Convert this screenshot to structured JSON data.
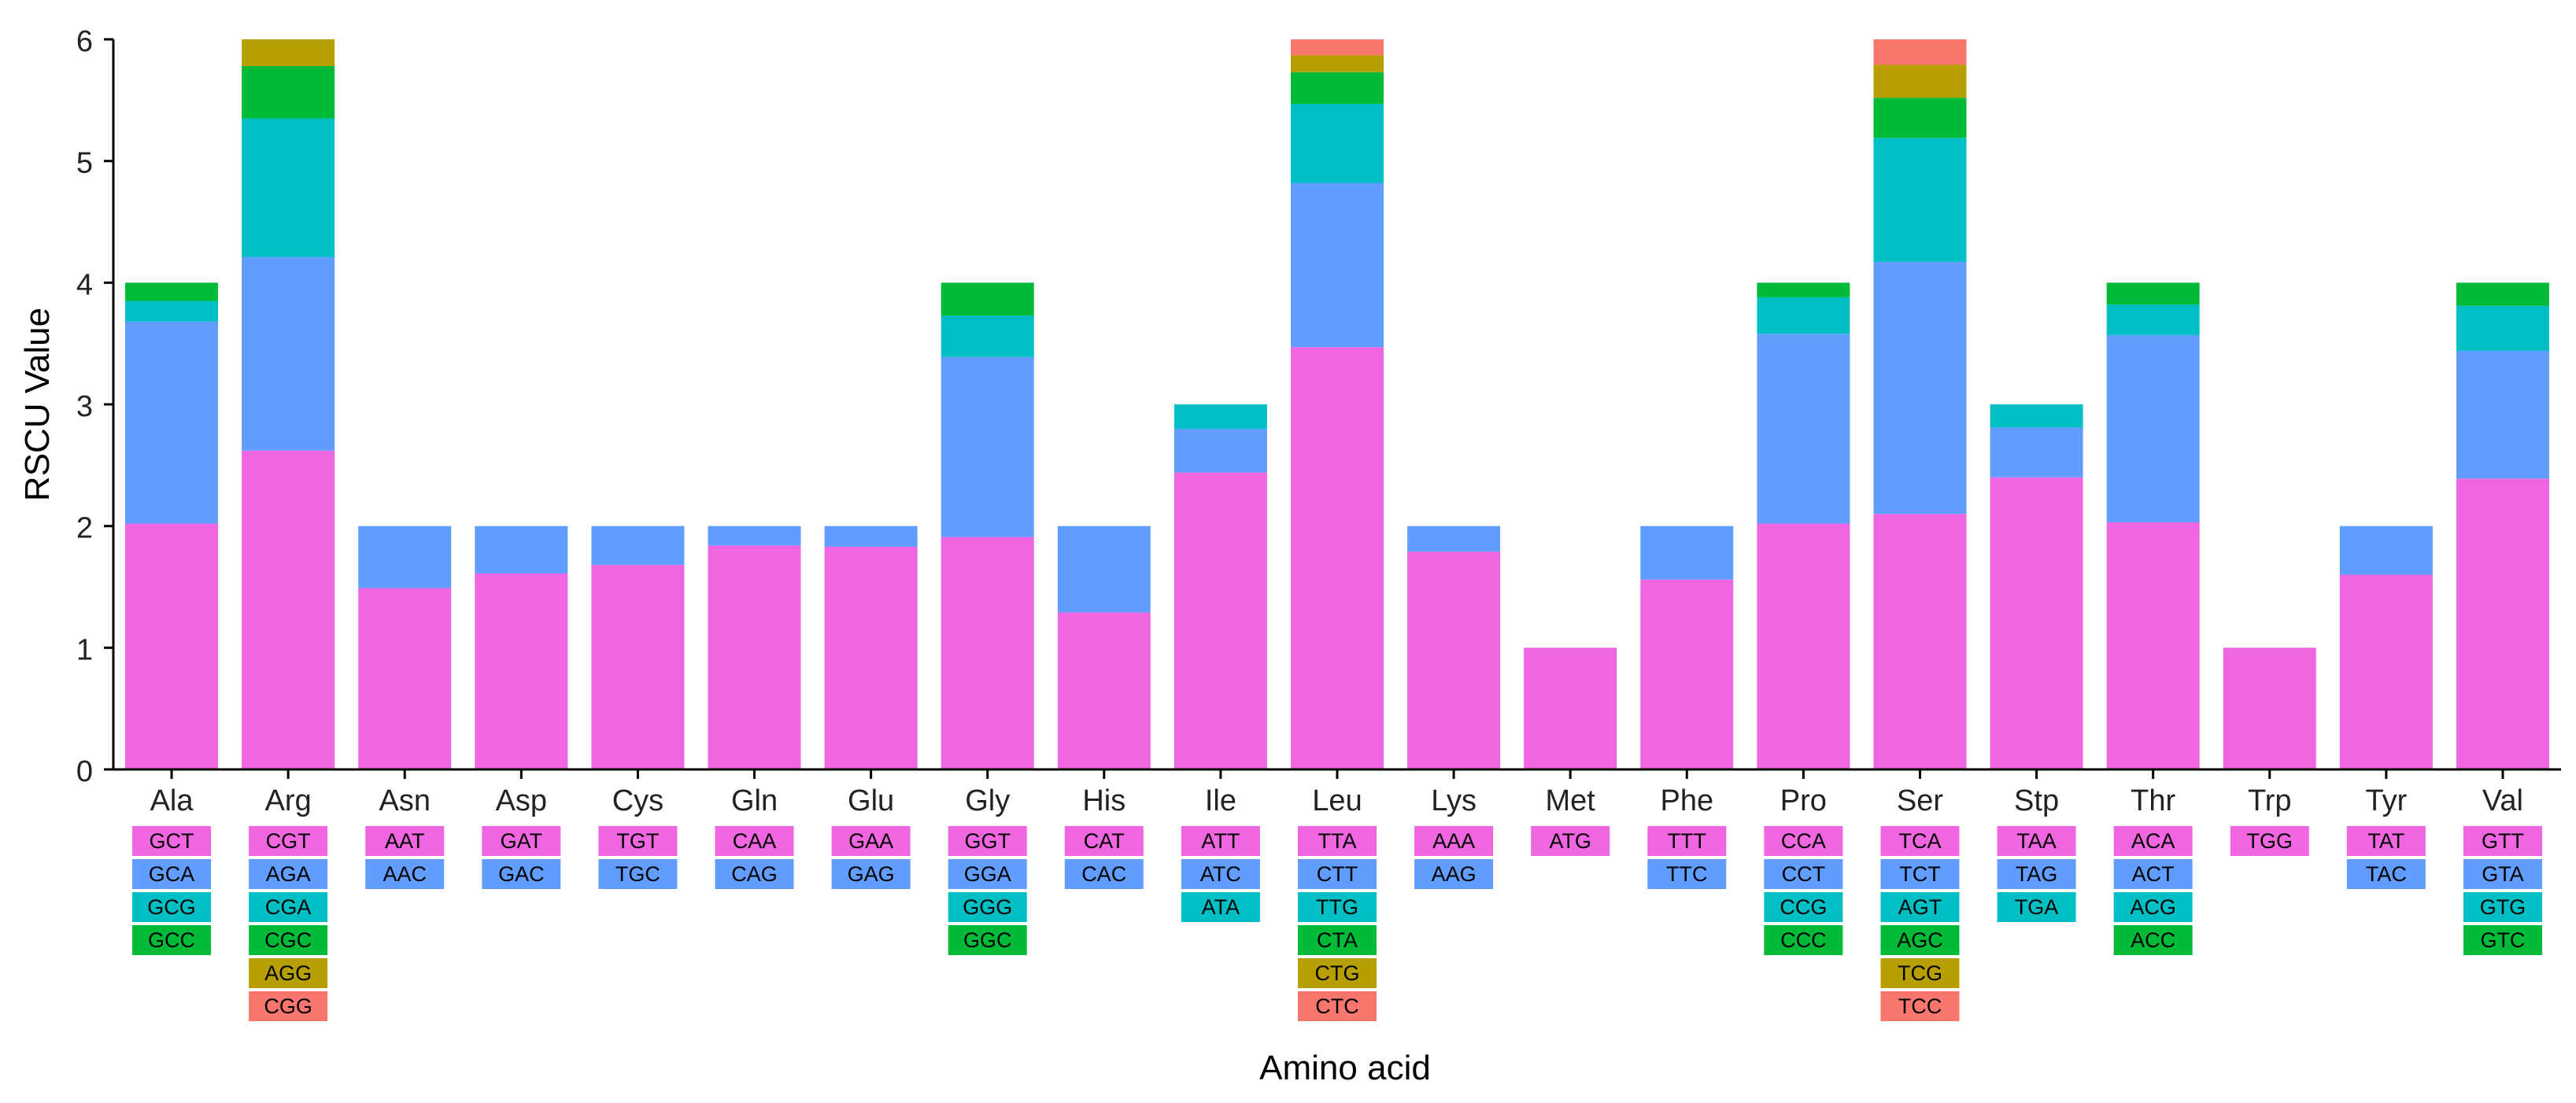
{
  "chart_data": {
    "type": "bar",
    "stacked": true,
    "title": "",
    "xlabel": "Amino acid",
    "ylabel": "RSCU Value",
    "ylim": [
      0,
      6
    ],
    "yticks": [
      "0",
      "1",
      "2",
      "3",
      "4",
      "5",
      "6"
    ],
    "grid": false,
    "legend": "codon boxes below each category",
    "layer_colors": [
      "#F066E0",
      "#619CFF",
      "#00BFC4",
      "#00BA38",
      "#B79F00",
      "#F8766D"
    ],
    "categories": [
      {
        "name": "Ala",
        "codons": [
          "GCT",
          "GCA",
          "GCG",
          "GCC"
        ],
        "values": [
          2.02,
          1.66,
          0.17,
          0.15
        ]
      },
      {
        "name": "Arg",
        "codons": [
          "CGT",
          "AGA",
          "CGA",
          "CGC",
          "AGG",
          "CGG"
        ],
        "values": [
          2.62,
          1.59,
          1.14,
          0.43,
          0.22,
          0.0
        ]
      },
      {
        "name": "Asn",
        "codons": [
          "AAT",
          "AAC"
        ],
        "values": [
          1.49,
          0.51
        ]
      },
      {
        "name": "Asp",
        "codons": [
          "GAT",
          "GAC"
        ],
        "values": [
          1.61,
          0.39
        ]
      },
      {
        "name": "Cys",
        "codons": [
          "TGT",
          "TGC"
        ],
        "values": [
          1.68,
          0.32
        ]
      },
      {
        "name": "Gln",
        "codons": [
          "CAA",
          "CAG"
        ],
        "values": [
          1.84,
          0.16
        ]
      },
      {
        "name": "Glu",
        "codons": [
          "GAA",
          "GAG"
        ],
        "values": [
          1.83,
          0.17
        ]
      },
      {
        "name": "Gly",
        "codons": [
          "GGT",
          "GGA",
          "GGG",
          "GGC"
        ],
        "values": [
          1.91,
          1.48,
          0.34,
          0.27
        ]
      },
      {
        "name": "His",
        "codons": [
          "CAT",
          "CAC"
        ],
        "values": [
          1.29,
          0.71
        ]
      },
      {
        "name": "Ile",
        "codons": [
          "ATT",
          "ATC",
          "ATA"
        ],
        "values": [
          2.44,
          0.36,
          0.2
        ]
      },
      {
        "name": "Leu",
        "codons": [
          "TTA",
          "CTT",
          "TTG",
          "CTA",
          "CTG",
          "CTC"
        ],
        "values": [
          3.47,
          1.35,
          0.65,
          0.26,
          0.14,
          0.13
        ]
      },
      {
        "name": "Lys",
        "codons": [
          "AAA",
          "AAG"
        ],
        "values": [
          1.79,
          0.21
        ]
      },
      {
        "name": "Met",
        "codons": [
          "ATG"
        ],
        "values": [
          1.0
        ]
      },
      {
        "name": "Phe",
        "codons": [
          "TTT",
          "TTC"
        ],
        "values": [
          1.56,
          0.44
        ]
      },
      {
        "name": "Pro",
        "codons": [
          "CCA",
          "CCT",
          "CCG",
          "CCC"
        ],
        "values": [
          2.02,
          1.56,
          0.3,
          0.12
        ]
      },
      {
        "name": "Ser",
        "codons": [
          "TCA",
          "TCT",
          "AGT",
          "AGC",
          "TCG",
          "TCC"
        ],
        "values": [
          2.1,
          2.07,
          1.02,
          0.33,
          0.27,
          0.21
        ]
      },
      {
        "name": "Stp",
        "codons": [
          "TAA",
          "TAG",
          "TGA"
        ],
        "values": [
          2.4,
          0.41,
          0.19
        ]
      },
      {
        "name": "Thr",
        "codons": [
          "ACA",
          "ACT",
          "ACG",
          "ACC"
        ],
        "values": [
          2.03,
          1.54,
          0.25,
          0.18
        ]
      },
      {
        "name": "Trp",
        "codons": [
          "TGG"
        ],
        "values": [
          1.0
        ]
      },
      {
        "name": "Tyr",
        "codons": [
          "TAT",
          "TAC"
        ],
        "values": [
          1.6,
          0.4
        ]
      },
      {
        "name": "Val",
        "codons": [
          "GTT",
          "GTA",
          "GTG",
          "GTC"
        ],
        "values": [
          2.39,
          1.05,
          0.37,
          0.19
        ]
      }
    ]
  }
}
